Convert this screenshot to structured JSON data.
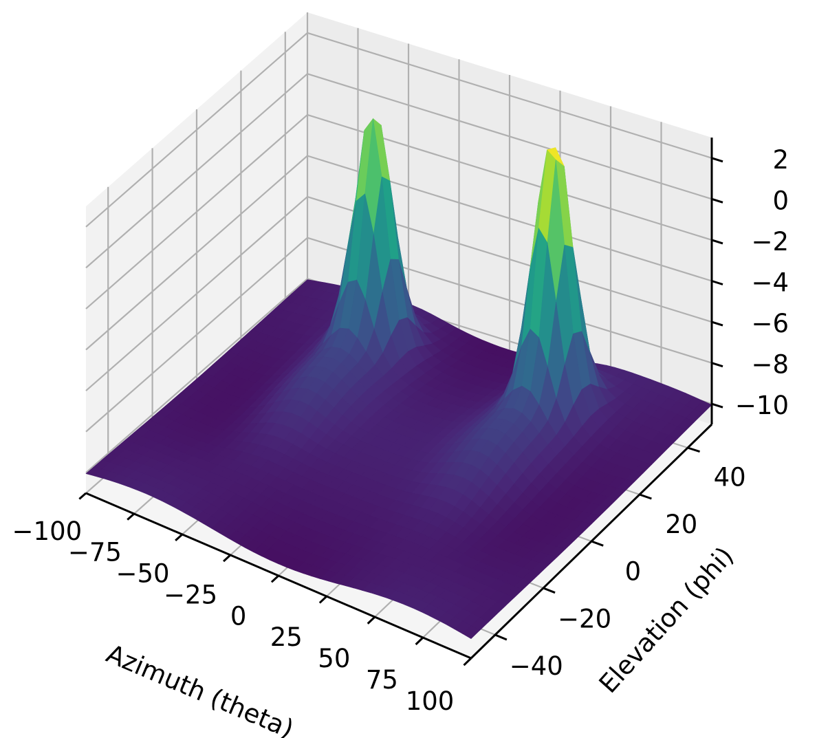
{
  "chart_data": {
    "type": "surface",
    "title": "",
    "colormap": "viridis",
    "xlabel": "Azimuth (theta)",
    "ylabel": "Elevation (phi)",
    "zlabel": "",
    "xlim": [
      -100,
      100
    ],
    "ylim": [
      -50,
      50
    ],
    "zlim": [
      -11,
      3
    ],
    "x_ticks": [
      "−100",
      "−75",
      "−50",
      "−25",
      "0",
      "25",
      "50",
      "75",
      "100"
    ],
    "y_ticks": [
      "−40",
      "−20",
      "0",
      "20",
      "40"
    ],
    "z_ticks": [
      "2",
      "0",
      "−2",
      "−4",
      "−6",
      "−8",
      "−10"
    ],
    "grid": true,
    "surface": {
      "description_values": {
        "base_level": -11,
        "peaks": [
          {
            "theta": -45,
            "phi": 30,
            "z": 1
          },
          {
            "theta": 45,
            "phi": 30,
            "z": 2.9
          }
        ]
      }
    },
    "colors": {
      "pane_left": "#f2f2f2",
      "pane_back": "#ececec",
      "pane_floor": "#f5f5f5",
      "grid": "#b0b0b0",
      "axis": "#000000"
    }
  }
}
